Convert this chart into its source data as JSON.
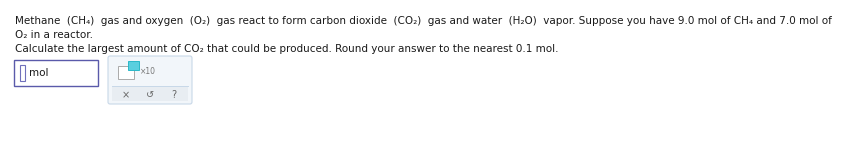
{
  "bg_color": "#ffffff",
  "text_color": "#1a1a1a",
  "line1": "Methane  (CH₄)  gas and oxygen  (O₂)  gas react to form carbon dioxide  (CO₂)  gas and water  (H₂O)  vapor. Suppose you have 9.0 mol of CH₄ and 7.0 mol of",
  "line2": "O₂ in a reactor.",
  "line3": "Calculate the largest amount of CO₂ that could be produced. Round your answer to the nearest 0.1 mol.",
  "mol_label": "mol",
  "font_size": 7.5,
  "input_box_color": "#5a5aaa",
  "cursor_color": "#7070bb",
  "calc_box_bg": "#f2f6fa",
  "calc_box_border": "#c8d8e8",
  "sq_white_border": "#aaaaaa",
  "sq_teal_border": "#2ab8c8",
  "sq_teal_fill": "#5acfdf",
  "bottom_strip_bg": "#e8edf2",
  "symbol_color": "#666666"
}
